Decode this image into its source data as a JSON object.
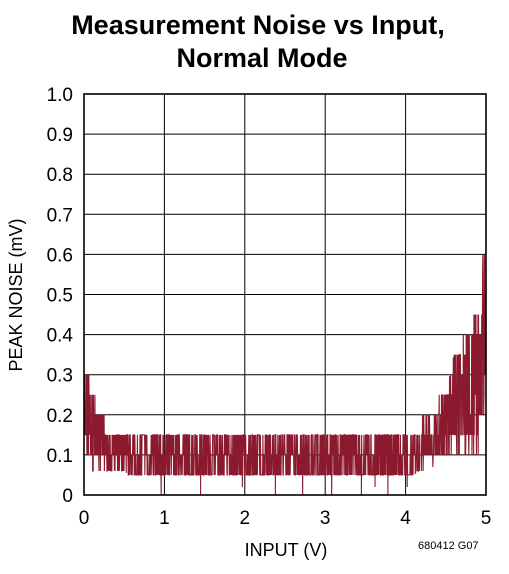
{
  "chart_data": {
    "type": "line",
    "title_lines": [
      "Measurement Noise vs Input,",
      "Normal Mode"
    ],
    "xlabel": "INPUT (V)",
    "ylabel": "PEAK NOISE (mV)",
    "figure_code": "680412 G07",
    "xlim": [
      0,
      5
    ],
    "ylim": [
      0,
      1.0
    ],
    "x_ticks": [
      "0",
      "1",
      "2",
      "3",
      "4",
      "5"
    ],
    "y_ticks": [
      "0",
      "0.1",
      "0.2",
      "0.3",
      "0.4",
      "0.5",
      "0.6",
      "0.7",
      "0.8",
      "0.9",
      "1.0"
    ],
    "grid": true,
    "series": [
      {
        "color": "#8b1a2e",
        "x": [
          0,
          0.05,
          0.1,
          0.15,
          0.2,
          0.25,
          0.3,
          0.35,
          0.4,
          0.45,
          0.5,
          0.55,
          0.6,
          0.65,
          0.7,
          0.75,
          0.8,
          0.85,
          0.9,
          0.95,
          1.0,
          1.1,
          1.2,
          1.3,
          1.4,
          1.5,
          1.6,
          1.7,
          1.8,
          1.9,
          2.0,
          2.1,
          2.2,
          2.3,
          2.4,
          2.5,
          2.6,
          2.7,
          2.8,
          2.9,
          3.0,
          3.1,
          3.2,
          3.3,
          3.4,
          3.5,
          3.6,
          3.7,
          3.8,
          3.9,
          4.0,
          4.05,
          4.1,
          4.15,
          4.2,
          4.25,
          4.3,
          4.35,
          4.4,
          4.45,
          4.5,
          4.55,
          4.6,
          4.65,
          4.7,
          4.75,
          4.8,
          4.85,
          4.9,
          4.93,
          4.96,
          4.98,
          5.0
        ],
        "min": [
          0.1,
          0.08,
          0.06,
          0.06,
          0.06,
          0.06,
          0.06,
          0.06,
          0.06,
          0.06,
          0.06,
          0.05,
          0.05,
          0.05,
          0.05,
          0.05,
          0.05,
          0.05,
          0.05,
          0.05,
          0.05,
          0.05,
          0.05,
          0.05,
          0.05,
          0.05,
          0.05,
          0.05,
          0.05,
          0.05,
          0.05,
          0.05,
          0.05,
          0.05,
          0.05,
          0.05,
          0.05,
          0.05,
          0.05,
          0.05,
          0.05,
          0.05,
          0.05,
          0.05,
          0.05,
          0.05,
          0.05,
          0.05,
          0.05,
          0.05,
          0.05,
          0.05,
          0.05,
          0.06,
          0.06,
          0.06,
          0.07,
          0.07,
          0.08,
          0.08,
          0.08,
          0.09,
          0.1,
          0.1,
          0.1,
          0.1,
          0.1,
          0.1,
          0.1,
          0.12,
          0.15,
          0.2,
          0.25
        ],
        "max": [
          0.3,
          0.35,
          0.25,
          0.25,
          0.2,
          0.2,
          0.15,
          0.15,
          0.15,
          0.15,
          0.15,
          0.15,
          0.15,
          0.15,
          0.15,
          0.15,
          0.15,
          0.15,
          0.15,
          0.15,
          0.15,
          0.15,
          0.15,
          0.15,
          0.15,
          0.15,
          0.15,
          0.15,
          0.15,
          0.15,
          0.15,
          0.15,
          0.15,
          0.15,
          0.15,
          0.15,
          0.15,
          0.15,
          0.15,
          0.15,
          0.15,
          0.15,
          0.15,
          0.15,
          0.15,
          0.15,
          0.15,
          0.15,
          0.15,
          0.15,
          0.15,
          0.15,
          0.15,
          0.15,
          0.2,
          0.2,
          0.2,
          0.2,
          0.25,
          0.25,
          0.25,
          0.3,
          0.35,
          0.35,
          0.4,
          0.45,
          0.4,
          0.45,
          0.5,
          0.4,
          0.65,
          0.6,
          0.5
        ],
        "outlier_dips": [
          [
            0.96,
            0.0
          ],
          [
            1.45,
            0.0
          ],
          [
            1.97,
            0.02
          ],
          [
            2.38,
            0.0
          ],
          [
            2.72,
            0.0
          ],
          [
            3.08,
            0.0
          ],
          [
            3.45,
            0.0
          ],
          [
            3.62,
            0.02
          ],
          [
            3.78,
            0.0
          ],
          [
            4.02,
            0.02
          ]
        ]
      }
    ]
  }
}
